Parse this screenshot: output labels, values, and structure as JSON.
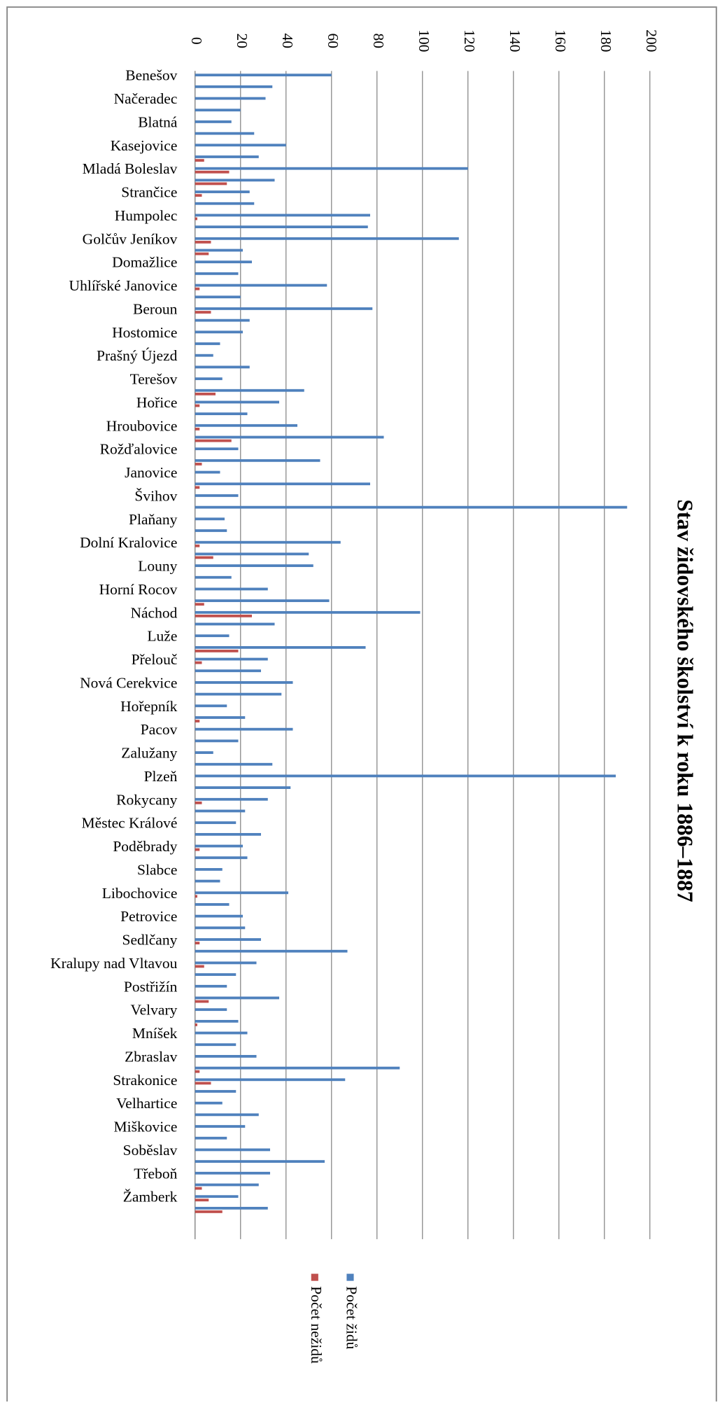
{
  "chart_data": {
    "type": "bar",
    "orientation": "horizontal",
    "title": "Stav židovského školství k roku 1886–1887",
    "categories": [
      "Benešov",
      null,
      "Načeradec",
      null,
      "Blatná",
      null,
      "Kasejovice",
      null,
      "Mladá Boleslav",
      null,
      "Strančice",
      null,
      "Humpolec",
      null,
      "Golčův Jeníkov",
      null,
      "Domažlice",
      null,
      "Uhlířské Janovice",
      null,
      "Beroun",
      null,
      "Hostomice",
      null,
      "Prašný Újezd",
      null,
      "Terešov",
      null,
      "Hořice",
      null,
      "Hroubovice",
      null,
      "Rožďalovice",
      null,
      "Janovice",
      null,
      "Švihov",
      null,
      "Plaňany",
      null,
      "Dolní Kralovice",
      null,
      "Louny",
      null,
      "Horní Rocov",
      null,
      "Náchod",
      null,
      "Luže",
      null,
      "Přelouč",
      null,
      "Nová Cerekvice",
      null,
      "Hořepník",
      null,
      "Pacov",
      null,
      "Zalužany",
      null,
      "Plzeň",
      null,
      "Rokycany",
      null,
      "Městec Králové",
      null,
      "Poděbrady",
      null,
      "Slabce",
      null,
      "Libochovice",
      null,
      "Petrovice",
      null,
      "Sedlčany",
      null,
      "Kralupy nad Vltavou",
      null,
      "Postřižín",
      null,
      "Velvary",
      null,
      "Mníšek",
      null,
      "Zbraslav",
      null,
      "Strakonice",
      null,
      "Velhartice",
      null,
      "Miškovice",
      null,
      "Soběslav",
      null,
      "Třeboň",
      null,
      "Žamberk",
      null,
      null,
      null
    ],
    "series": [
      {
        "name": "Počet židů",
        "color": "#4f81bd",
        "values": [
          60,
          34,
          31,
          20,
          16,
          26,
          40,
          28,
          120,
          35,
          24,
          26,
          77,
          76,
          116,
          21,
          25,
          19,
          58,
          20,
          78,
          24,
          21,
          11,
          8,
          24,
          12,
          48,
          37,
          23,
          45,
          83,
          19,
          55,
          11,
          77,
          19,
          190,
          13,
          14,
          64,
          50,
          52,
          16,
          32,
          59,
          99,
          35,
          15,
          75,
          32,
          29,
          43,
          38,
          14,
          22,
          43,
          19,
          8,
          34,
          185,
          42,
          32,
          22,
          18,
          29,
          21,
          23,
          12,
          11,
          41,
          15,
          21,
          22,
          29,
          67,
          27,
          18,
          14,
          37,
          14,
          19,
          23,
          18,
          27,
          90,
          66,
          18,
          12,
          28,
          22,
          14,
          33,
          57,
          33,
          28,
          19,
          32,
          null,
          null
        ]
      },
      {
        "name": "Počet nežidů",
        "color": "#c0504d",
        "values": [
          0,
          0,
          0,
          0,
          0,
          0,
          0,
          4,
          15,
          14,
          3,
          0,
          1,
          0,
          7,
          6,
          0,
          0,
          2,
          0,
          7,
          0,
          0,
          0,
          0,
          0,
          0,
          9,
          2,
          0,
          2,
          16,
          0,
          3,
          0,
          2,
          0,
          0,
          0,
          0,
          2,
          8,
          0,
          0,
          0,
          4,
          25,
          0,
          0,
          19,
          3,
          0,
          0,
          0,
          0,
          2,
          0,
          0,
          0,
          0,
          0,
          0,
          3,
          0,
          0,
          0,
          2,
          0,
          0,
          0,
          1,
          0,
          0,
          0,
          2,
          0,
          4,
          0,
          0,
          6,
          0,
          1,
          0,
          0,
          0,
          2,
          7,
          0,
          0,
          0,
          0,
          0,
          0,
          0,
          0,
          3,
          6,
          12,
          null,
          null
        ]
      }
    ],
    "xlim": [
      0,
      200
    ],
    "xticks": [
      0,
      20,
      40,
      60,
      80,
      100,
      120,
      140,
      160,
      180,
      200
    ],
    "grid": true,
    "legend": "bottom"
  }
}
